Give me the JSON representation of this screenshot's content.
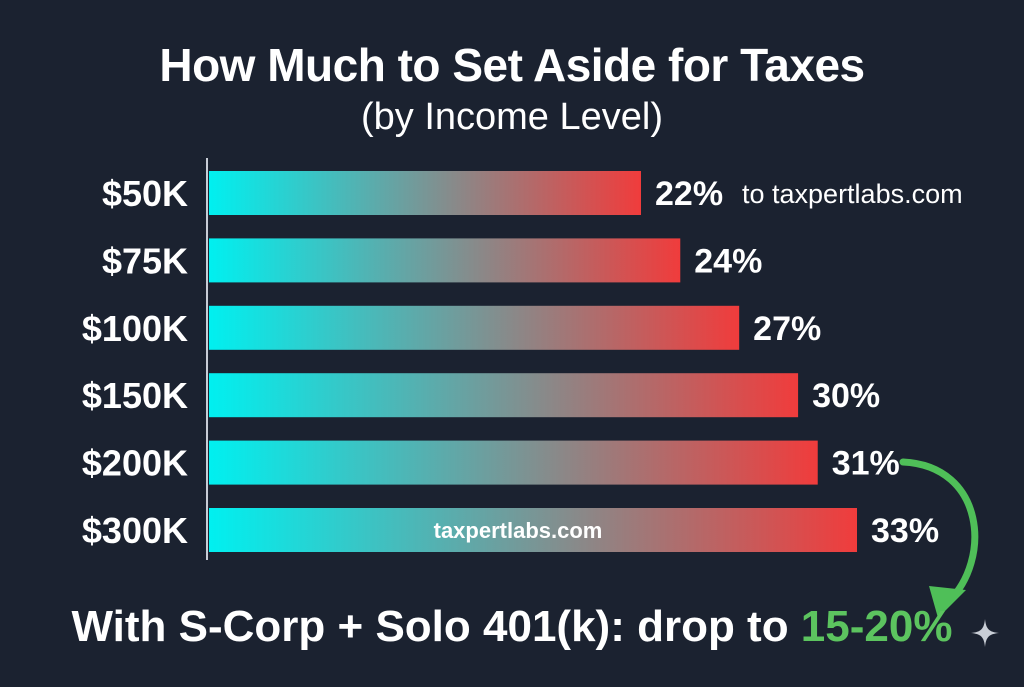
{
  "chart_data": {
    "type": "bar",
    "orientation": "horizontal",
    "title": "How Much to Set Aside for Taxes",
    "subtitle": "(by Income Level)",
    "categories": [
      "$50K",
      "$75K",
      "$100K",
      "$150K",
      "$200K",
      "$300K"
    ],
    "values": [
      22,
      24,
      27,
      30,
      31,
      33
    ],
    "value_labels": [
      "22%",
      "24%",
      "27%",
      "30%",
      "31%",
      "33%"
    ],
    "xlim": [
      0,
      33
    ],
    "bar_gradient": [
      "#00f0f0",
      "#f03c3c"
    ],
    "grid": false,
    "annotations": {
      "side_note": "to taxpertlabs.com",
      "watermark": "taxpertlabs.com",
      "arrow_color": "#4fbf58"
    }
  },
  "footer": {
    "lead": "With S-Corp + Solo 401(k): drop to ",
    "highlight": "15-20%",
    "highlight_color": "#5cc45f"
  },
  "icons": {
    "corner": "sparkle-icon"
  }
}
